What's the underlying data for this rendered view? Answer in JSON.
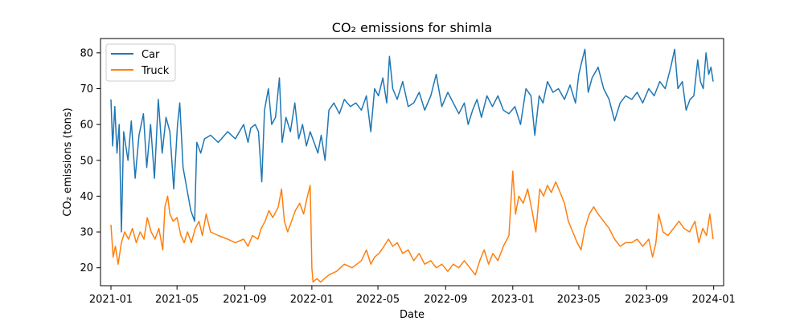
{
  "chart_data": {
    "type": "line",
    "title": "CO₂ emissions for shimla",
    "xlabel": "Date",
    "ylabel": "CO₂ emissions (tons)",
    "xlim": [
      "2020-12-13",
      "2024-01-19"
    ],
    "ylim": [
      15.0,
      84.0
    ],
    "x_ticks": [
      "2021-01",
      "2021-05",
      "2021-09",
      "2022-01",
      "2022-05",
      "2022-09",
      "2023-01",
      "2023-05",
      "2023-09",
      "2024-01"
    ],
    "y_ticks": [
      20,
      30,
      40,
      50,
      60,
      70,
      80
    ],
    "legend": {
      "position": "top-left"
    },
    "grid": false,
    "series": [
      {
        "name": "Car",
        "color": "#1f77b4",
        "points": [
          [
            "2021-01-01",
            67
          ],
          [
            "2021-01-04",
            54
          ],
          [
            "2021-01-08",
            65
          ],
          [
            "2021-01-12",
            52
          ],
          [
            "2021-01-16",
            60
          ],
          [
            "2021-01-20",
            30
          ],
          [
            "2021-01-24",
            58
          ],
          [
            "2021-02-01",
            50
          ],
          [
            "2021-02-07",
            61
          ],
          [
            "2021-02-14",
            45
          ],
          [
            "2021-02-21",
            57
          ],
          [
            "2021-03-01",
            63
          ],
          [
            "2021-03-07",
            48
          ],
          [
            "2021-03-14",
            60
          ],
          [
            "2021-03-21",
            45
          ],
          [
            "2021-03-28",
            67
          ],
          [
            "2021-04-04",
            52
          ],
          [
            "2021-04-11",
            62
          ],
          [
            "2021-04-18",
            58
          ],
          [
            "2021-04-25",
            42
          ],
          [
            "2021-05-02",
            60
          ],
          [
            "2021-05-06",
            66
          ],
          [
            "2021-05-12",
            48
          ],
          [
            "2021-05-19",
            42
          ],
          [
            "2021-05-26",
            36
          ],
          [
            "2021-06-02",
            33
          ],
          [
            "2021-06-06",
            55
          ],
          [
            "2021-06-13",
            52
          ],
          [
            "2021-06-20",
            56
          ],
          [
            "2021-07-01",
            57
          ],
          [
            "2021-07-15",
            55
          ],
          [
            "2021-08-01",
            58
          ],
          [
            "2021-08-15",
            56
          ],
          [
            "2021-08-30",
            60
          ],
          [
            "2021-09-07",
            55
          ],
          [
            "2021-09-12",
            59
          ],
          [
            "2021-09-20",
            60
          ],
          [
            "2021-09-26",
            58
          ],
          [
            "2021-10-02",
            44
          ],
          [
            "2021-10-07",
            64
          ],
          [
            "2021-10-14",
            70
          ],
          [
            "2021-10-20",
            60
          ],
          [
            "2021-10-27",
            62
          ],
          [
            "2021-11-03",
            73
          ],
          [
            "2021-11-08",
            55
          ],
          [
            "2021-11-15",
            62
          ],
          [
            "2021-11-23",
            58
          ],
          [
            "2021-12-01",
            66
          ],
          [
            "2021-12-08",
            56
          ],
          [
            "2021-12-15",
            60
          ],
          [
            "2021-12-22",
            54
          ],
          [
            "2021-12-29",
            58
          ],
          [
            "2022-01-05",
            55
          ],
          [
            "2022-01-12",
            52
          ],
          [
            "2022-01-18",
            57
          ],
          [
            "2022-01-25",
            50
          ],
          [
            "2022-02-01",
            64
          ],
          [
            "2022-02-10",
            66
          ],
          [
            "2022-02-20",
            63
          ],
          [
            "2022-03-01",
            67
          ],
          [
            "2022-03-12",
            65
          ],
          [
            "2022-03-22",
            66
          ],
          [
            "2022-04-01",
            64
          ],
          [
            "2022-04-10",
            68
          ],
          [
            "2022-04-18",
            58
          ],
          [
            "2022-04-25",
            70
          ],
          [
            "2022-05-02",
            68
          ],
          [
            "2022-05-10",
            73
          ],
          [
            "2022-05-17",
            66
          ],
          [
            "2022-05-22",
            79
          ],
          [
            "2022-05-28",
            70
          ],
          [
            "2022-06-05",
            67
          ],
          [
            "2022-06-15",
            72
          ],
          [
            "2022-06-25",
            65
          ],
          [
            "2022-07-05",
            66
          ],
          [
            "2022-07-15",
            69
          ],
          [
            "2022-07-25",
            64
          ],
          [
            "2022-08-05",
            68
          ],
          [
            "2022-08-15",
            74
          ],
          [
            "2022-08-25",
            65
          ],
          [
            "2022-09-05",
            69
          ],
          [
            "2022-09-15",
            66
          ],
          [
            "2022-09-25",
            63
          ],
          [
            "2022-10-05",
            66
          ],
          [
            "2022-10-12",
            60
          ],
          [
            "2022-10-20",
            64
          ],
          [
            "2022-10-28",
            67
          ],
          [
            "2022-11-05",
            62
          ],
          [
            "2022-11-15",
            68
          ],
          [
            "2022-11-25",
            65
          ],
          [
            "2022-12-05",
            68
          ],
          [
            "2022-12-15",
            64
          ],
          [
            "2022-12-25",
            63
          ],
          [
            "2023-01-05",
            65
          ],
          [
            "2023-01-15",
            60
          ],
          [
            "2023-01-25",
            70
          ],
          [
            "2023-02-03",
            68
          ],
          [
            "2023-02-10",
            57
          ],
          [
            "2023-02-18",
            68
          ],
          [
            "2023-02-25",
            66
          ],
          [
            "2023-03-05",
            72
          ],
          [
            "2023-03-15",
            69
          ],
          [
            "2023-03-25",
            70
          ],
          [
            "2023-04-05",
            67
          ],
          [
            "2023-04-15",
            71
          ],
          [
            "2023-04-25",
            66
          ],
          [
            "2023-05-01",
            74
          ],
          [
            "2023-05-07",
            78
          ],
          [
            "2023-05-12",
            81
          ],
          [
            "2023-05-18",
            69
          ],
          [
            "2023-05-25",
            73
          ],
          [
            "2023-06-05",
            76
          ],
          [
            "2023-06-15",
            70
          ],
          [
            "2023-06-25",
            67
          ],
          [
            "2023-07-05",
            61
          ],
          [
            "2023-07-15",
            66
          ],
          [
            "2023-07-25",
            68
          ],
          [
            "2023-08-05",
            67
          ],
          [
            "2023-08-15",
            69
          ],
          [
            "2023-08-25",
            66
          ],
          [
            "2023-09-05",
            70
          ],
          [
            "2023-09-15",
            68
          ],
          [
            "2023-09-25",
            72
          ],
          [
            "2023-10-05",
            70
          ],
          [
            "2023-10-15",
            76
          ],
          [
            "2023-10-22",
            81
          ],
          [
            "2023-10-28",
            70
          ],
          [
            "2023-11-05",
            72
          ],
          [
            "2023-11-12",
            64
          ],
          [
            "2023-11-19",
            67
          ],
          [
            "2023-11-26",
            68
          ],
          [
            "2023-12-03",
            78
          ],
          [
            "2023-12-08",
            72
          ],
          [
            "2023-12-13",
            70
          ],
          [
            "2023-12-18",
            80
          ],
          [
            "2023-12-23",
            74
          ],
          [
            "2023-12-27",
            76
          ],
          [
            "2023-12-31",
            72
          ]
        ]
      },
      {
        "name": "Truck",
        "color": "#ff7f0e",
        "points": [
          [
            "2021-01-01",
            32
          ],
          [
            "2021-01-05",
            23
          ],
          [
            "2021-01-09",
            26
          ],
          [
            "2021-01-14",
            21
          ],
          [
            "2021-01-20",
            27
          ],
          [
            "2021-01-26",
            30
          ],
          [
            "2021-02-02",
            28
          ],
          [
            "2021-02-09",
            31
          ],
          [
            "2021-02-16",
            27
          ],
          [
            "2021-02-23",
            30
          ],
          [
            "2021-03-02",
            28
          ],
          [
            "2021-03-08",
            34
          ],
          [
            "2021-03-15",
            30
          ],
          [
            "2021-03-22",
            28
          ],
          [
            "2021-03-29",
            31
          ],
          [
            "2021-04-05",
            25
          ],
          [
            "2021-04-09",
            37
          ],
          [
            "2021-04-14",
            40
          ],
          [
            "2021-04-18",
            35
          ],
          [
            "2021-04-24",
            33
          ],
          [
            "2021-05-01",
            34
          ],
          [
            "2021-05-08",
            29
          ],
          [
            "2021-05-14",
            27
          ],
          [
            "2021-05-20",
            30
          ],
          [
            "2021-05-27",
            27
          ],
          [
            "2021-06-03",
            31
          ],
          [
            "2021-06-10",
            33
          ],
          [
            "2021-06-16",
            29
          ],
          [
            "2021-06-23",
            35
          ],
          [
            "2021-07-01",
            30
          ],
          [
            "2021-07-15",
            29
          ],
          [
            "2021-08-01",
            28
          ],
          [
            "2021-08-15",
            27
          ],
          [
            "2021-08-30",
            28
          ],
          [
            "2021-09-07",
            26
          ],
          [
            "2021-09-15",
            29
          ],
          [
            "2021-09-25",
            28
          ],
          [
            "2021-10-01",
            31
          ],
          [
            "2021-10-08",
            33
          ],
          [
            "2021-10-15",
            36
          ],
          [
            "2021-10-22",
            34
          ],
          [
            "2021-11-01",
            37
          ],
          [
            "2021-11-07",
            42
          ],
          [
            "2021-11-12",
            33
          ],
          [
            "2021-11-18",
            30
          ],
          [
            "2021-11-25",
            33
          ],
          [
            "2021-12-02",
            36
          ],
          [
            "2021-12-10",
            38
          ],
          [
            "2021-12-17",
            35
          ],
          [
            "2021-12-24",
            40
          ],
          [
            "2021-12-29",
            43
          ],
          [
            "2022-01-01",
            20
          ],
          [
            "2022-01-03",
            16
          ],
          [
            "2022-01-10",
            17
          ],
          [
            "2022-01-17",
            16
          ],
          [
            "2022-01-24",
            17
          ],
          [
            "2022-02-01",
            18
          ],
          [
            "2022-02-15",
            19
          ],
          [
            "2022-03-01",
            21
          ],
          [
            "2022-03-15",
            20
          ],
          [
            "2022-04-01",
            22
          ],
          [
            "2022-04-10",
            25
          ],
          [
            "2022-04-18",
            21
          ],
          [
            "2022-04-25",
            23
          ],
          [
            "2022-05-03",
            24
          ],
          [
            "2022-05-12",
            26
          ],
          [
            "2022-05-20",
            28
          ],
          [
            "2022-05-28",
            26
          ],
          [
            "2022-06-05",
            27
          ],
          [
            "2022-06-15",
            24
          ],
          [
            "2022-06-25",
            25
          ],
          [
            "2022-07-05",
            22
          ],
          [
            "2022-07-15",
            24
          ],
          [
            "2022-07-25",
            21
          ],
          [
            "2022-08-05",
            22
          ],
          [
            "2022-08-15",
            20
          ],
          [
            "2022-08-25",
            21
          ],
          [
            "2022-09-05",
            19
          ],
          [
            "2022-09-15",
            21
          ],
          [
            "2022-09-25",
            20
          ],
          [
            "2022-10-05",
            22
          ],
          [
            "2022-10-15",
            20
          ],
          [
            "2022-10-25",
            18
          ],
          [
            "2022-11-02",
            22
          ],
          [
            "2022-11-10",
            25
          ],
          [
            "2022-11-18",
            21
          ],
          [
            "2022-11-26",
            24
          ],
          [
            "2022-12-05",
            22
          ],
          [
            "2022-12-15",
            26
          ],
          [
            "2022-12-25",
            29
          ],
          [
            "2023-01-01",
            47
          ],
          [
            "2023-01-06",
            35
          ],
          [
            "2023-01-12",
            40
          ],
          [
            "2023-01-20",
            38
          ],
          [
            "2023-01-28",
            42
          ],
          [
            "2023-02-05",
            36
          ],
          [
            "2023-02-12",
            30
          ],
          [
            "2023-02-19",
            42
          ],
          [
            "2023-02-26",
            40
          ],
          [
            "2023-03-05",
            43
          ],
          [
            "2023-03-12",
            41
          ],
          [
            "2023-03-20",
            44
          ],
          [
            "2023-03-28",
            41
          ],
          [
            "2023-04-05",
            38
          ],
          [
            "2023-04-12",
            33
          ],
          [
            "2023-04-20",
            30
          ],
          [
            "2023-04-28",
            27
          ],
          [
            "2023-05-05",
            25
          ],
          [
            "2023-05-12",
            31
          ],
          [
            "2023-05-20",
            35
          ],
          [
            "2023-05-28",
            37
          ],
          [
            "2023-06-05",
            35
          ],
          [
            "2023-06-15",
            33
          ],
          [
            "2023-06-25",
            31
          ],
          [
            "2023-07-05",
            28
          ],
          [
            "2023-07-15",
            26
          ],
          [
            "2023-07-25",
            27
          ],
          [
            "2023-08-05",
            27
          ],
          [
            "2023-08-15",
            28
          ],
          [
            "2023-08-25",
            26
          ],
          [
            "2023-09-05",
            28
          ],
          [
            "2023-09-12",
            23
          ],
          [
            "2023-09-18",
            27
          ],
          [
            "2023-09-23",
            35
          ],
          [
            "2023-10-01",
            30
          ],
          [
            "2023-10-10",
            29
          ],
          [
            "2023-10-20",
            31
          ],
          [
            "2023-10-30",
            33
          ],
          [
            "2023-11-08",
            31
          ],
          [
            "2023-11-18",
            30
          ],
          [
            "2023-11-28",
            33
          ],
          [
            "2023-12-05",
            27
          ],
          [
            "2023-12-12",
            31
          ],
          [
            "2023-12-19",
            29
          ],
          [
            "2023-12-25",
            35
          ],
          [
            "2023-12-31",
            28
          ]
        ]
      }
    ]
  }
}
